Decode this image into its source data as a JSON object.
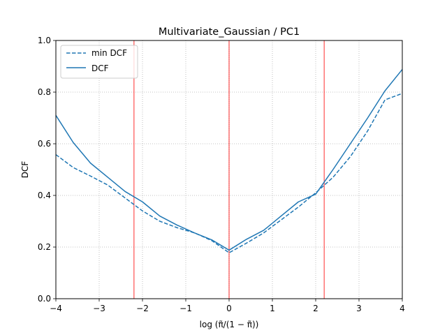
{
  "chart_data": {
    "type": "line",
    "title": "Multivariate_Gaussian / PC1",
    "xlabel": "log (π̃/(1 − π̃))",
    "ylabel": "DCF",
    "xlim": [
      -4,
      4
    ],
    "ylim": [
      0.0,
      1.0
    ],
    "x_ticks": [
      -4,
      -3,
      -2,
      -1,
      0,
      1,
      2,
      3,
      4
    ],
    "x_tick_labels": [
      "−4",
      "−3",
      "−2",
      "−1",
      "0",
      "1",
      "2",
      "3",
      "4"
    ],
    "y_ticks": [
      0.0,
      0.2,
      0.4,
      0.6,
      0.8,
      1.0
    ],
    "y_tick_labels": [
      "0.0",
      "0.2",
      "0.4",
      "0.6",
      "0.8",
      "1.0"
    ],
    "grid": true,
    "legend_position": "top-left",
    "series": [
      {
        "name": "min DCF",
        "style": "dashed",
        "color": "#1f77b4",
        "x": [
          -4.0,
          -3.6,
          -3.2,
          -2.8,
          -2.4,
          -2.0,
          -1.6,
          -1.2,
          -0.8,
          -0.4,
          0.0,
          0.4,
          0.8,
          1.2,
          1.6,
          2.0,
          2.4,
          2.8,
          3.2,
          3.6,
          4.0
        ],
        "y": [
          0.558,
          0.508,
          0.475,
          0.44,
          0.39,
          0.34,
          0.3,
          0.275,
          0.255,
          0.225,
          0.178,
          0.215,
          0.255,
          0.305,
          0.355,
          0.41,
          0.47,
          0.55,
          0.65,
          0.77,
          0.795
        ]
      },
      {
        "name": "DCF",
        "style": "solid",
        "color": "#1f77b4",
        "x": [
          -4.0,
          -3.6,
          -3.2,
          -2.8,
          -2.4,
          -2.0,
          -1.6,
          -1.2,
          -0.8,
          -0.4,
          0.0,
          0.4,
          0.8,
          1.2,
          1.6,
          2.0,
          2.4,
          2.8,
          3.2,
          3.6,
          4.0
        ],
        "y": [
          0.71,
          0.605,
          0.525,
          0.47,
          0.415,
          0.375,
          0.32,
          0.285,
          0.255,
          0.228,
          0.188,
          0.23,
          0.265,
          0.32,
          0.375,
          0.405,
          0.5,
          0.6,
          0.7,
          0.805,
          0.888
        ]
      }
    ],
    "vertical_lines": [
      {
        "x": -2.197,
        "color": "#ff0000"
      },
      {
        "x": 0.0,
        "color": "#ff0000"
      },
      {
        "x": 2.197,
        "color": "#ff0000"
      }
    ]
  }
}
